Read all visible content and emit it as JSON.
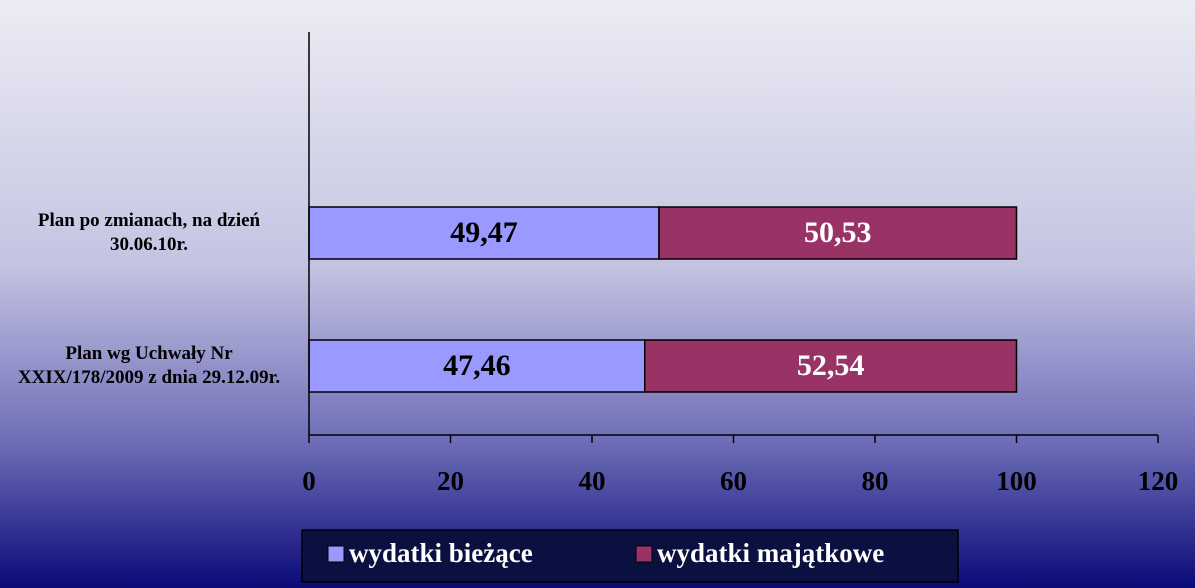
{
  "chart_data": {
    "type": "bar",
    "orientation": "horizontal",
    "stacked": true,
    "categories": [
      "Plan wg Uchwały Nr XXIX/178/2009 z dnia 29.12.09r.",
      "Plan po zmianach, na dzień 30.06.10r."
    ],
    "series": [
      {
        "name": "wydatki bieżące",
        "color": "#9999ff",
        "label_color": "#000000",
        "values": [
          47.46,
          49.47
        ],
        "value_labels": [
          "47,46",
          "49,47"
        ]
      },
      {
        "name": "wydatki majątkowe",
        "color": "#993366",
        "label_color": "#ffffff",
        "values": [
          52.54,
          50.53
        ],
        "value_labels": [
          "52,54",
          "50,53"
        ]
      }
    ],
    "xlim": [
      0,
      120
    ],
    "xticks": [
      0,
      20,
      40,
      60,
      80,
      100,
      120
    ]
  }
}
